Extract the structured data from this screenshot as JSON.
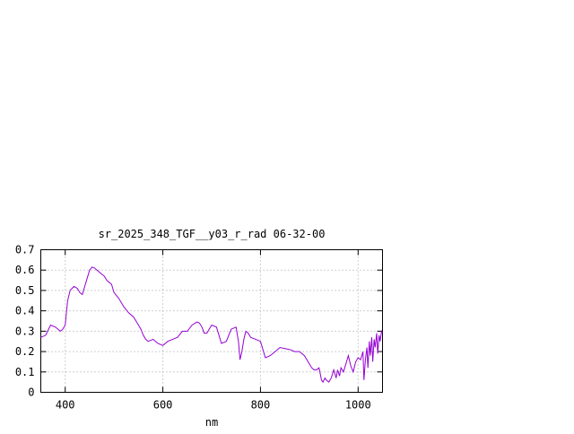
{
  "chart_data": {
    "type": "line",
    "title": "sr_2025_348_TGF__y03_r_rad 06-32-00",
    "xlabel": "nm",
    "ylabel": "",
    "xlim": [
      350,
      1050
    ],
    "ylim": [
      0,
      0.7
    ],
    "x_ticks": [
      400,
      600,
      800,
      1000
    ],
    "y_ticks": [
      0,
      0.1,
      0.2,
      0.3,
      0.4,
      0.5,
      0.6,
      0.7
    ],
    "x_tick_labels": [
      "400",
      "600",
      "800",
      "1000"
    ],
    "y_tick_labels": [
      "0",
      "0.1",
      "0.2",
      "0.3",
      "0.4",
      "0.5",
      "0.6",
      "0.7"
    ],
    "grid": true,
    "legend": "none",
    "colors": {
      "series": "#9400d3",
      "axes": "#000000",
      "grid": "#a0a0a0"
    },
    "series": [
      {
        "x": [
          350,
          360,
          370,
          380,
          390,
          395,
          400,
          405,
          410,
          418,
          425,
          430,
          435,
          440,
          445,
          450,
          455,
          460,
          465,
          470,
          475,
          480,
          485,
          490,
          495,
          500,
          510,
          520,
          530,
          540,
          550,
          555,
          560,
          565,
          570,
          580,
          590,
          600,
          610,
          620,
          630,
          640,
          650,
          660,
          670,
          675,
          680,
          685,
          690,
          700,
          710,
          720,
          730,
          740,
          750,
          755,
          758,
          762,
          766,
          770,
          775,
          780,
          790,
          800,
          810,
          820,
          830,
          840,
          850,
          860,
          870,
          880,
          890,
          900,
          905,
          910,
          915,
          920,
          925,
          928,
          932,
          935,
          940,
          945,
          950,
          955,
          958,
          962,
          965,
          970,
          975,
          980,
          985,
          990,
          995,
          1000,
          1005,
          1010,
          1012,
          1015,
          1018,
          1020,
          1023,
          1025,
          1028,
          1030,
          1033,
          1035,
          1038,
          1040,
          1043,
          1045,
          1048,
          1050
        ],
        "y": [
          0.27,
          0.28,
          0.33,
          0.32,
          0.3,
          0.31,
          0.33,
          0.45,
          0.5,
          0.52,
          0.51,
          0.49,
          0.48,
          0.52,
          0.56,
          0.6,
          0.615,
          0.61,
          0.6,
          0.59,
          0.58,
          0.57,
          0.55,
          0.54,
          0.53,
          0.49,
          0.46,
          0.42,
          0.39,
          0.37,
          0.33,
          0.31,
          0.28,
          0.26,
          0.25,
          0.26,
          0.24,
          0.23,
          0.25,
          0.26,
          0.27,
          0.3,
          0.3,
          0.33,
          0.345,
          0.34,
          0.32,
          0.29,
          0.29,
          0.33,
          0.32,
          0.24,
          0.25,
          0.31,
          0.32,
          0.25,
          0.16,
          0.2,
          0.26,
          0.3,
          0.29,
          0.27,
          0.26,
          0.25,
          0.17,
          0.18,
          0.2,
          0.22,
          0.215,
          0.21,
          0.2,
          0.2,
          0.18,
          0.14,
          0.12,
          0.11,
          0.11,
          0.12,
          0.06,
          0.05,
          0.07,
          0.06,
          0.05,
          0.07,
          0.11,
          0.07,
          0.11,
          0.08,
          0.12,
          0.1,
          0.14,
          0.18,
          0.13,
          0.1,
          0.15,
          0.17,
          0.16,
          0.2,
          0.06,
          0.16,
          0.22,
          0.12,
          0.25,
          0.18,
          0.27,
          0.15,
          0.26,
          0.22,
          0.29,
          0.19,
          0.28,
          0.25,
          0.3,
          0.29
        ]
      }
    ]
  }
}
